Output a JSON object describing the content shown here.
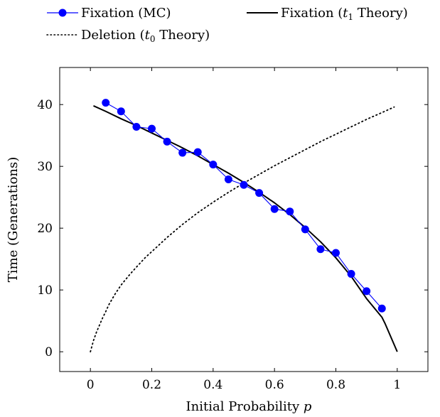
{
  "chart_data": {
    "type": "line",
    "xlabel": "Initial Probability p",
    "ylabel": "Time (Generations)",
    "xlim": [
      -0.1,
      1.1
    ],
    "ylim": [
      -3.2,
      46
    ],
    "xticks": [
      "0",
      "0.2",
      "0.4",
      "0.6",
      "0.8",
      "1"
    ],
    "xtick_values": [
      0,
      0.2,
      0.4,
      0.6,
      0.8,
      1
    ],
    "yticks": [
      "0",
      "10",
      "20",
      "30",
      "40"
    ],
    "ytick_values": [
      0,
      10,
      20,
      30,
      40
    ],
    "grid": false,
    "legend_position": "top, above plot",
    "series": [
      {
        "name": "Fixation (MC)",
        "style": "line-with-markers",
        "color": "#0000ff",
        "x": [
          0.05,
          0.1,
          0.15,
          0.2,
          0.25,
          0.3,
          0.35,
          0.4,
          0.45,
          0.5,
          0.55,
          0.6,
          0.65,
          0.7,
          0.75,
          0.8,
          0.85,
          0.9,
          0.95
        ],
        "y": [
          40.3,
          38.9,
          36.4,
          36.1,
          34.0,
          32.2,
          32.3,
          30.3,
          27.9,
          27.0,
          25.7,
          23.1,
          22.7,
          19.8,
          16.6,
          16.0,
          12.6,
          9.8,
          7.0
        ]
      },
      {
        "name": "Fixation (t₁ Theory)",
        "style": "solid",
        "color": "#000000",
        "x": [
          0.01,
          0.05,
          0.1,
          0.15,
          0.2,
          0.25,
          0.3,
          0.35,
          0.4,
          0.45,
          0.5,
          0.55,
          0.6,
          0.65,
          0.7,
          0.75,
          0.8,
          0.85,
          0.9,
          0.95,
          0.96,
          1.0
        ],
        "y": [
          39.8,
          38.9,
          37.7,
          36.6,
          35.4,
          34.2,
          33.0,
          31.7,
          30.3,
          28.9,
          27.4,
          25.8,
          24.1,
          22.2,
          20.1,
          17.8,
          15.2,
          12.2,
          8.6,
          5.6,
          4.6,
          0
        ]
      },
      {
        "name": "Deletion (t₀ Theory)",
        "style": "dotted",
        "color": "#000000",
        "x": [
          0.0,
          0.01,
          0.02,
          0.04,
          0.05,
          0.06,
          0.08,
          0.1,
          0.13,
          0.15,
          0.18,
          0.2,
          0.25,
          0.3,
          0.35,
          0.4,
          0.45,
          0.5,
          0.55,
          0.6,
          0.65,
          0.7,
          0.75,
          0.8,
          0.85,
          0.9,
          0.95,
          0.99
        ],
        "y": [
          0,
          1.8,
          3.2,
          5.5,
          6.5,
          7.6,
          9.3,
          10.8,
          12.6,
          13.7,
          15.3,
          16.2,
          18.5,
          20.6,
          22.5,
          24.2,
          25.8,
          27.3,
          28.7,
          30.1,
          31.4,
          32.7,
          34.0,
          35.2,
          36.4,
          37.6,
          38.7,
          39.6
        ]
      }
    ]
  },
  "legend": {
    "items": [
      {
        "name": "Fixation (MC)",
        "label_main": "Fixation (MC)",
        "label_sub": "",
        "label_tail": ""
      },
      {
        "name": "Fixation (t₁ Theory)",
        "label_main": "Fixation (",
        "label_var": "t",
        "label_sub": "1",
        "label_tail": " Theory)"
      },
      {
        "name": "Deletion (t₀ Theory)",
        "label_main": "Deletion (",
        "label_var": "t",
        "label_sub": "0",
        "label_tail": " Theory)"
      }
    ]
  },
  "axis_labels": {
    "x_main": "Initial Probability ",
    "x_var": "p",
    "y": "Time (Generations)"
  }
}
